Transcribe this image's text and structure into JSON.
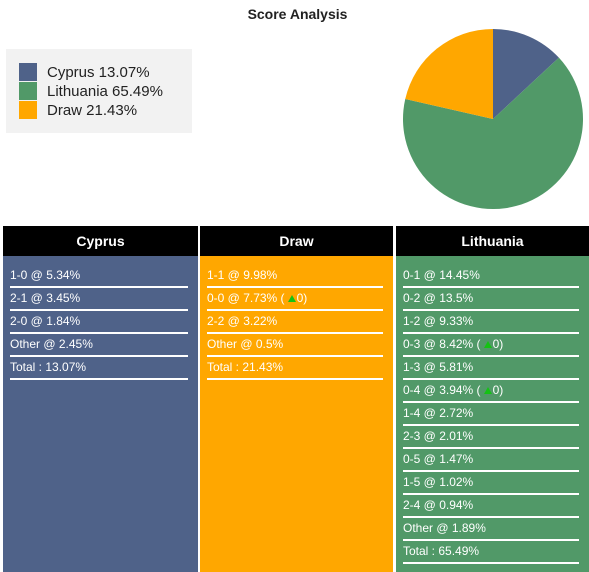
{
  "title": "Score Analysis",
  "colors": {
    "cyprus": "#4f6289",
    "lithuania": "#519968",
    "draw": "#ffa700",
    "header_bg": "#000000"
  },
  "legend": [
    {
      "label": "Cyprus 13.07%",
      "color": "#4f6289"
    },
    {
      "label": "Lithuania 65.49%",
      "color": "#519968"
    },
    {
      "label": "Draw 21.43%",
      "color": "#ffa700"
    }
  ],
  "chart_data": {
    "type": "pie",
    "title": "Score Analysis",
    "slices": [
      {
        "label": "Cyprus",
        "value": 13.07,
        "color": "#4f6289"
      },
      {
        "label": "Lithuania",
        "value": 65.49,
        "color": "#519968"
      },
      {
        "label": "Draw",
        "value": 21.43,
        "color": "#ffa700"
      }
    ],
    "legend_position": "top-left"
  },
  "columns": [
    {
      "key": "cyprus",
      "header": "Cyprus",
      "color": "#4f6289",
      "rows": [
        {
          "text": "1-0 @ 5.34%"
        },
        {
          "text": "2-1 @ 3.45%"
        },
        {
          "text": "2-0 @ 1.84%"
        },
        {
          "text": "Other @ 2.45%"
        },
        {
          "text": "Total : 13.07%"
        }
      ]
    },
    {
      "key": "draw",
      "header": "Draw",
      "color": "#ffa700",
      "rows": [
        {
          "text": "1-1 @ 9.98%"
        },
        {
          "text": "0-0 @ 7.73% (",
          "arrow": "up",
          "after": "0)"
        },
        {
          "text": "2-2 @ 3.22%"
        },
        {
          "text": "Other @ 0.5%"
        },
        {
          "text": "Total : 21.43%"
        }
      ]
    },
    {
      "key": "lithuania",
      "header": "Lithuania",
      "color": "#519968",
      "rows": [
        {
          "text": "0-1 @ 14.45%"
        },
        {
          "text": "0-2 @ 13.5%"
        },
        {
          "text": "1-2 @ 9.33%"
        },
        {
          "text": "0-3 @ 8.42% (",
          "arrow": "up",
          "after": "0)"
        },
        {
          "text": "1-3 @ 5.81%"
        },
        {
          "text": "0-4 @ 3.94% (",
          "arrow": "up",
          "after": "0)"
        },
        {
          "text": "1-4 @ 2.72%"
        },
        {
          "text": "2-3 @ 2.01%"
        },
        {
          "text": "0-5 @ 1.47%"
        },
        {
          "text": "1-5 @ 1.02%"
        },
        {
          "text": "2-4 @ 0.94%"
        },
        {
          "text": "Other @ 1.89%"
        },
        {
          "text": "Total : 65.49%"
        }
      ]
    }
  ]
}
